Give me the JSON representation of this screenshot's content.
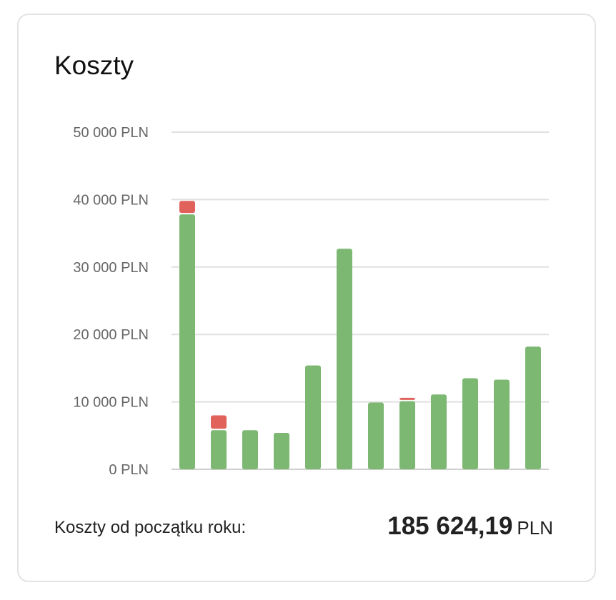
{
  "card": {
    "title": "Koszty"
  },
  "chart_data": {
    "type": "bar",
    "stacked": true,
    "categories": [
      "",
      "",
      "",
      "",
      "",
      "",
      "",
      "",
      "",
      "",
      "",
      ""
    ],
    "series": [
      {
        "color": "#7cb872",
        "values": [
          37800,
          5800,
          5800,
          5400,
          15400,
          32700,
          9900,
          10100,
          11100,
          13500,
          13300,
          18200
        ]
      },
      {
        "color": "#e0625b",
        "values": [
          2000,
          2200,
          0,
          0,
          0,
          0,
          0,
          500,
          0,
          0,
          0,
          0
        ]
      }
    ],
    "ylim": [
      0,
      50000
    ],
    "yticks": [
      0,
      10000,
      20000,
      30000,
      40000,
      50000
    ],
    "ytick_labels": [
      "0 PLN",
      "10 000 PLN",
      "20 000 PLN",
      "30 000 PLN",
      "40 000 PLN",
      "50 000 PLN"
    ],
    "grid": true,
    "legend": "none",
    "xlabel": "",
    "ylabel": ""
  },
  "footer": {
    "label": "Koszty od początku roku:",
    "amount": "185 624,19",
    "currency": "PLN"
  }
}
